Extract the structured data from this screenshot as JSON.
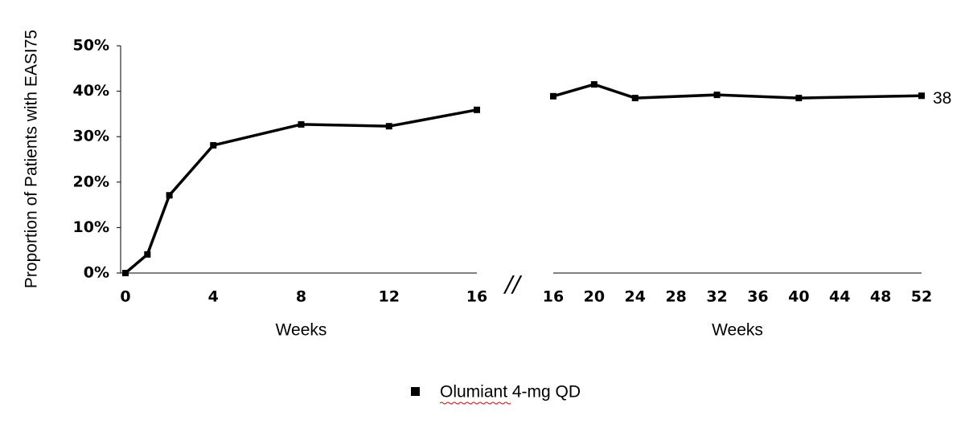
{
  "chart_data": [
    {
      "type": "line",
      "y_label": "Proportion of Patients with EASI75",
      "x_label": "Weeks",
      "x": [
        0,
        1,
        2,
        4,
        8,
        12,
        16
      ],
      "xlim": [
        0,
        16
      ],
      "xticks": [
        0,
        4,
        8,
        12,
        16
      ],
      "ylim": [
        0,
        50
      ],
      "yticks": [
        {
          "value": 0,
          "label": "0%"
        },
        {
          "value": 10,
          "label": "10%"
        },
        {
          "value": 20,
          "label": "20%"
        },
        {
          "value": 30,
          "label": "30%"
        },
        {
          "value": 40,
          "label": "40%"
        },
        {
          "value": 50,
          "label": "50%"
        }
      ],
      "series": [
        {
          "name": "Olumiant 4-mg QD",
          "color": "#000000",
          "values": [
            0,
            4.1,
            17.1,
            28.1,
            32.7,
            32.3,
            35.9
          ]
        }
      ]
    },
    {
      "type": "line",
      "x_label": "Weeks",
      "x": [
        16,
        20,
        24,
        32,
        40,
        52
      ],
      "xlim": [
        16,
        52
      ],
      "xticks": [
        16,
        20,
        24,
        28,
        32,
        36,
        40,
        44,
        48,
        52
      ],
      "ylim": [
        0,
        50
      ],
      "annotation": "38",
      "series": [
        {
          "color": "#000000",
          "values": [
            38.9,
            41.5,
            38.5,
            39.2,
            38.5,
            39.0
          ]
        }
      ]
    }
  ]
}
